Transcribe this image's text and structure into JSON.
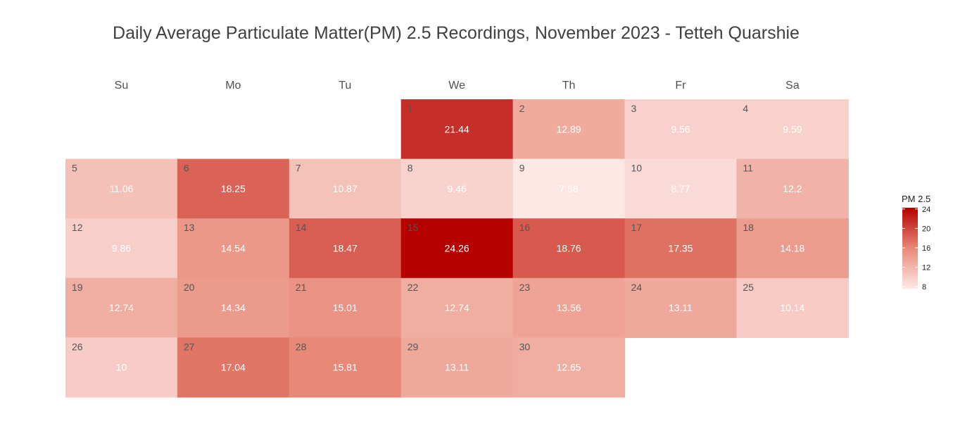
{
  "chart_data": {
    "type": "heatmap",
    "title": "Daily Average Particulate Matter(PM) 2.5 Recordings, November 2023 - Tetteh Quarshie",
    "weekdays": [
      "Su",
      "Mo",
      "Tu",
      "We",
      "Th",
      "Fr",
      "Sa"
    ],
    "first_weekday_index": 3,
    "days": [
      {
        "day": "1",
        "value": "21.44"
      },
      {
        "day": "2",
        "value": "12.89"
      },
      {
        "day": "3",
        "value": "9.56"
      },
      {
        "day": "4",
        "value": "9.59"
      },
      {
        "day": "5",
        "value": "11.06"
      },
      {
        "day": "6",
        "value": "18.25"
      },
      {
        "day": "7",
        "value": "10.87"
      },
      {
        "day": "8",
        "value": "9.46"
      },
      {
        "day": "9",
        "value": "7.58"
      },
      {
        "day": "10",
        "value": "8.77"
      },
      {
        "day": "11",
        "value": "12.2"
      },
      {
        "day": "12",
        "value": "9.86"
      },
      {
        "day": "13",
        "value": "14.54"
      },
      {
        "day": "14",
        "value": "18.47"
      },
      {
        "day": "15",
        "value": "24.26"
      },
      {
        "day": "16",
        "value": "18.76"
      },
      {
        "day": "17",
        "value": "17.35"
      },
      {
        "day": "18",
        "value": "14.18"
      },
      {
        "day": "19",
        "value": "12.74"
      },
      {
        "day": "20",
        "value": "14.34"
      },
      {
        "day": "21",
        "value": "15.01"
      },
      {
        "day": "22",
        "value": "12.74"
      },
      {
        "day": "23",
        "value": "13.56"
      },
      {
        "day": "24",
        "value": "13.11"
      },
      {
        "day": "25",
        "value": "10.14"
      },
      {
        "day": "26",
        "value": "10"
      },
      {
        "day": "27",
        "value": "17.04"
      },
      {
        "day": "28",
        "value": "15.81"
      },
      {
        "day": "29",
        "value": "13.11"
      },
      {
        "day": "30",
        "value": "12.65"
      }
    ],
    "legend": {
      "title": "PM 2.5",
      "ticks": [
        "24",
        "20",
        "16",
        "12",
        "8"
      ],
      "min": 7.58,
      "max": 24.26,
      "low_color": "#fde8e6",
      "high_color": "#b50000"
    }
  }
}
